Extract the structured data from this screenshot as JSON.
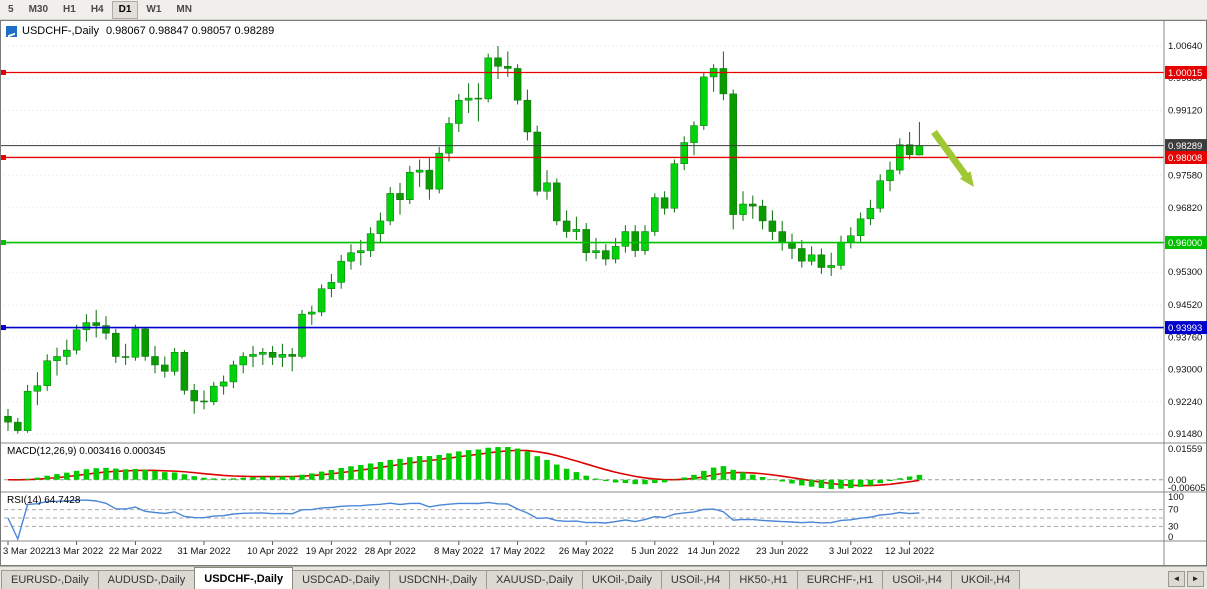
{
  "toolbar": {
    "timeframes": [
      "5",
      "M30",
      "H1",
      "H4",
      "D1",
      "W1",
      "MN"
    ],
    "active": "D1"
  },
  "chart_header": {
    "symbol_period": "USDCHF-,Daily",
    "ohlc_display": "0.98067 0.98847 0.98057 0.98289"
  },
  "chart_data": {
    "type": "candlestick",
    "symbol": "USDCHF-",
    "timeframe": "Daily",
    "last_candle": {
      "open": 0.98067,
      "high": 0.98847,
      "low": 0.98057,
      "close": 0.98289
    },
    "candle_up_color": "#00d30b",
    "candle_down_color": "#0a9b00",
    "wick_color": "#0a6e0a",
    "y_axis_labels": [
      "1.00640",
      "0.99880",
      "0.99120",
      "0.98360",
      "0.97580",
      "0.96820",
      "0.96060",
      "0.95300",
      "0.94520",
      "0.93760",
      "0.93000",
      "0.92240",
      "0.91480"
    ],
    "x_labels": [
      {
        "label": "3 Mar 2022",
        "i": 0
      },
      {
        "label": "13 Mar 2022",
        "i": 7
      },
      {
        "label": "22 Mar 2022",
        "i": 13
      },
      {
        "label": "31 Mar 2022",
        "i": 20
      },
      {
        "label": "10 Apr 2022",
        "i": 27
      },
      {
        "label": "19 Apr 2022",
        "i": 33
      },
      {
        "label": "28 Apr 2022",
        "i": 39
      },
      {
        "label": "8 May 2022",
        "i": 46
      },
      {
        "label": "17 May 2022",
        "i": 52
      },
      {
        "label": "26 May 2022",
        "i": 59
      },
      {
        "label": "5 Jun 2022",
        "i": 66
      },
      {
        "label": "14 Jun 2022",
        "i": 72
      },
      {
        "label": "23 Jun 2022",
        "i": 79
      },
      {
        "label": "3 Jul 2022",
        "i": 86
      },
      {
        "label": "12 Jul 2022",
        "i": 92
      }
    ],
    "candles": [
      [
        0.919,
        0.9207,
        0.9155,
        0.9176
      ],
      [
        0.9176,
        0.9186,
        0.9149,
        0.9156
      ],
      [
        0.9156,
        0.9264,
        0.9151,
        0.9249
      ],
      [
        0.9249,
        0.9294,
        0.9216,
        0.9262
      ],
      [
        0.9262,
        0.9336,
        0.925,
        0.9321
      ],
      [
        0.9321,
        0.9352,
        0.9286,
        0.9331
      ],
      [
        0.9331,
        0.9371,
        0.9311,
        0.9346
      ],
      [
        0.9346,
        0.9406,
        0.9336,
        0.9394
      ],
      [
        0.9394,
        0.9431,
        0.9366,
        0.9411
      ],
      [
        0.9411,
        0.9441,
        0.9376,
        0.9404
      ],
      [
        0.9404,
        0.9426,
        0.9371,
        0.9386
      ],
      [
        0.9386,
        0.9396,
        0.9316,
        0.9331
      ],
      [
        0.9331,
        0.9361,
        0.9311,
        0.9329
      ],
      [
        0.9329,
        0.9406,
        0.9321,
        0.9396
      ],
      [
        0.9396,
        0.9401,
        0.9321,
        0.9331
      ],
      [
        0.9331,
        0.9356,
        0.9291,
        0.9311
      ],
      [
        0.9311,
        0.9331,
        0.9281,
        0.9296
      ],
      [
        0.9296,
        0.9351,
        0.9286,
        0.9341
      ],
      [
        0.9341,
        0.9346,
        0.9241,
        0.9251
      ],
      [
        0.9251,
        0.9266,
        0.9196,
        0.9226
      ],
      [
        0.9226,
        0.9251,
        0.9206,
        0.9224
      ],
      [
        0.9224,
        0.9271,
        0.9216,
        0.9261
      ],
      [
        0.9261,
        0.9286,
        0.9241,
        0.9271
      ],
      [
        0.9271,
        0.9321,
        0.9256,
        0.9311
      ],
      [
        0.9311,
        0.9341,
        0.9291,
        0.9331
      ],
      [
        0.9331,
        0.9356,
        0.9306,
        0.9336
      ],
      [
        0.9336,
        0.9351,
        0.9311,
        0.9341
      ],
      [
        0.9341,
        0.9356,
        0.9311,
        0.9329
      ],
      [
        0.9329,
        0.9361,
        0.9306,
        0.9336
      ],
      [
        0.9336,
        0.9351,
        0.9296,
        0.9331
      ],
      [
        0.9331,
        0.9441,
        0.9326,
        0.9431
      ],
      [
        0.9431,
        0.9451,
        0.9406,
        0.9436
      ],
      [
        0.9436,
        0.9501,
        0.9426,
        0.9491
      ],
      [
        0.9491,
        0.9526,
        0.9471,
        0.9506
      ],
      [
        0.9506,
        0.9571,
        0.9491,
        0.9556
      ],
      [
        0.9556,
        0.9596,
        0.9536,
        0.9576
      ],
      [
        0.9576,
        0.9606,
        0.9546,
        0.9581
      ],
      [
        0.9581,
        0.9636,
        0.9566,
        0.9621
      ],
      [
        0.9621,
        0.9671,
        0.9601,
        0.9651
      ],
      [
        0.9651,
        0.9731,
        0.9641,
        0.9716
      ],
      [
        0.9716,
        0.9741,
        0.9666,
        0.9701
      ],
      [
        0.9701,
        0.9781,
        0.9691,
        0.9766
      ],
      [
        0.9766,
        0.9796,
        0.9731,
        0.9771
      ],
      [
        0.9771,
        0.9801,
        0.9701,
        0.9726
      ],
      [
        0.9726,
        0.9826,
        0.9716,
        0.9811
      ],
      [
        0.9811,
        0.9896,
        0.9791,
        0.9881
      ],
      [
        0.9881,
        0.9951,
        0.9861,
        0.9936
      ],
      [
        0.9936,
        0.9976,
        0.9906,
        0.9941
      ],
      [
        0.9941,
        0.9976,
        0.9886,
        0.9939
      ],
      [
        0.9939,
        1.0046,
        0.9931,
        1.0036
      ],
      [
        1.0036,
        1.0064,
        0.9986,
        1.0016
      ],
      [
        1.0016,
        1.0051,
        0.9991,
        1.0011
      ],
      [
        1.0011,
        1.0021,
        0.9926,
        0.9936
      ],
      [
        0.9936,
        0.9961,
        0.9841,
        0.9861
      ],
      [
        0.9861,
        0.9876,
        0.9711,
        0.9721
      ],
      [
        0.9721,
        0.9771,
        0.9701,
        0.9741
      ],
      [
        0.9741,
        0.9751,
        0.9641,
        0.9651
      ],
      [
        0.9651,
        0.9676,
        0.9611,
        0.9626
      ],
      [
        0.9626,
        0.9661,
        0.9606,
        0.9631
      ],
      [
        0.9631,
        0.9646,
        0.9556,
        0.9576
      ],
      [
        0.9576,
        0.9611,
        0.9561,
        0.9581
      ],
      [
        0.9581,
        0.9596,
        0.9546,
        0.9561
      ],
      [
        0.9561,
        0.9611,
        0.9551,
        0.9591
      ],
      [
        0.9591,
        0.9641,
        0.9576,
        0.9626
      ],
      [
        0.9626,
        0.9641,
        0.9566,
        0.9581
      ],
      [
        0.9581,
        0.9641,
        0.9571,
        0.9626
      ],
      [
        0.9626,
        0.9716,
        0.9616,
        0.9706
      ],
      [
        0.9706,
        0.9721,
        0.9666,
        0.9681
      ],
      [
        0.9681,
        0.9796,
        0.9671,
        0.9786
      ],
      [
        0.9786,
        0.9851,
        0.9771,
        0.9836
      ],
      [
        0.9836,
        0.9886,
        0.9806,
        0.9876
      ],
      [
        0.9876,
        1.0001,
        0.9866,
        0.9991
      ],
      [
        0.9991,
        1.0021,
        0.9956,
        1.0011
      ],
      [
        1.0011,
        1.0051,
        0.9936,
        0.9951
      ],
      [
        0.9951,
        0.9961,
        0.9631,
        0.9666
      ],
      [
        0.9666,
        0.9721,
        0.9651,
        0.9691
      ],
      [
        0.9691,
        0.9711,
        0.9656,
        0.9686
      ],
      [
        0.9686,
        0.9701,
        0.9631,
        0.9651
      ],
      [
        0.9651,
        0.9676,
        0.9606,
        0.9626
      ],
      [
        0.9626,
        0.9651,
        0.9581,
        0.9601
      ],
      [
        0.9601,
        0.9621,
        0.9561,
        0.9586
      ],
      [
        0.9586,
        0.9606,
        0.9541,
        0.9556
      ],
      [
        0.9556,
        0.9591,
        0.9546,
        0.9571
      ],
      [
        0.9571,
        0.9586,
        0.9526,
        0.9541
      ],
      [
        0.9541,
        0.9576,
        0.9521,
        0.9546
      ],
      [
        0.9546,
        0.9616,
        0.9536,
        0.9601
      ],
      [
        0.9601,
        0.9636,
        0.9586,
        0.9616
      ],
      [
        0.9616,
        0.9671,
        0.9601,
        0.9656
      ],
      [
        0.9656,
        0.9701,
        0.9641,
        0.9681
      ],
      [
        0.9681,
        0.9761,
        0.9671,
        0.9746
      ],
      [
        0.9746,
        0.9791,
        0.9721,
        0.9771
      ],
      [
        0.9771,
        0.9846,
        0.9761,
        0.9831
      ],
      [
        0.9831,
        0.9861,
        0.9796,
        0.9807
      ],
      [
        0.98067,
        0.98847,
        0.98057,
        0.98289
      ]
    ],
    "hlines": [
      {
        "price": 1.00015,
        "label": "1.00015",
        "color": "#e60000",
        "width": 1.3,
        "kind": "resistance-line-upper"
      },
      {
        "price": 0.98289,
        "label": "0.98289",
        "color": "#3c3c3c",
        "width": 1.0,
        "kind": "current-price-line"
      },
      {
        "price": 0.98008,
        "label": "0.98008",
        "color": "#e60000",
        "width": 1.4,
        "kind": "resistance-line-lower"
      },
      {
        "price": 0.96,
        "label": "0.96000",
        "color": "#00c000",
        "width": 1.7,
        "kind": "support-line-green"
      },
      {
        "price": 0.93993,
        "label": "0.93993",
        "color": "#0000cc",
        "width": 1.7,
        "kind": "support-line-blue"
      }
    ],
    "annotation_arrow": {
      "color": "#9fc832",
      "direction": "down-right"
    },
    "indicators": {
      "macd": {
        "label": "MACD(12,26,9) 0.003416 0.000345",
        "params": [
          12,
          26,
          9
        ],
        "value": 0.003416,
        "signal_value": 0.000345,
        "axis_labels": [
          "0.01559",
          "0.00",
          "-0.00605"
        ],
        "histogram_color": "#00cc00",
        "signal_color": "#dd0000"
      },
      "rsi": {
        "label": "RSI(14) 64.7428",
        "period": 14,
        "value": 64.7428,
        "axis_labels": [
          "100",
          "70",
          "30",
          "0"
        ],
        "levels": [
          70,
          50,
          30
        ],
        "line_color": "#4a86d8"
      }
    }
  },
  "tabs": {
    "items": [
      "EURUSD-,Daily",
      "AUDUSD-,Daily",
      "USDCHF-,Daily",
      "USDCAD-,Daily",
      "USDCNH-,Daily",
      "XAUUSD-,Daily",
      "UKOil-,Daily",
      "USOil-,H4",
      "HK50-,H1",
      "EURCHF-,H1",
      "USOil-,H4",
      "UKOil-,H4"
    ],
    "active_index": 2,
    "scroll_left": "◄",
    "scroll_right": "►"
  }
}
